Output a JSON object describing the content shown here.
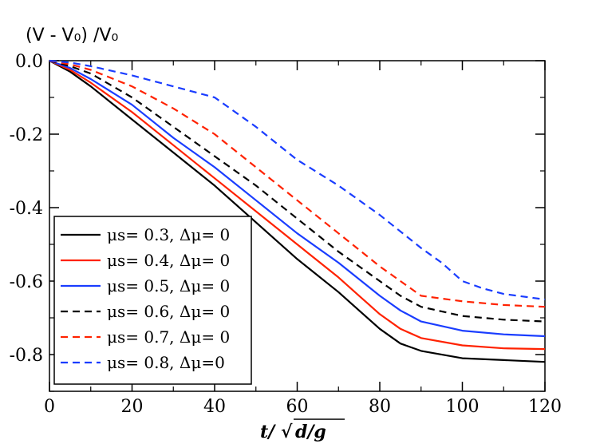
{
  "chart_data": {
    "type": "line",
    "title": "",
    "ylabel": "(V - V₀) /V₀",
    "xlabel": "t/√d/g",
    "xlim": [
      0,
      120
    ],
    "ylim": [
      -0.9,
      0
    ],
    "x_ticks": [
      0,
      20,
      40,
      60,
      80,
      100,
      120
    ],
    "x_tick_labels": [
      "0",
      "20",
      "40",
      "60",
      "80",
      "100",
      "120"
    ],
    "y_ticks": [
      0,
      -0.2,
      -0.4,
      -0.6,
      -0.8
    ],
    "y_tick_labels": [
      "0.0",
      "-0.2",
      "-0.4",
      "-0.6",
      "-0.8"
    ],
    "grid": false,
    "legend_position": "bottom-left",
    "series": [
      {
        "name": "μ_s= 0.3, Δμ= 0",
        "legend_text": "μs= 0.3, Δμ= 0",
        "color": "#000000",
        "dash": "solid",
        "x": [
          0,
          5,
          10,
          20,
          30,
          40,
          50,
          60,
          70,
          75,
          80,
          85,
          90,
          100,
          110,
          120
        ],
        "y": [
          0,
          -0.03,
          -0.07,
          -0.16,
          -0.25,
          -0.34,
          -0.44,
          -0.54,
          -0.63,
          -0.68,
          -0.73,
          -0.77,
          -0.79,
          -0.81,
          -0.815,
          -0.82
        ]
      },
      {
        "name": "μ_s= 0.4, Δμ= 0",
        "legend_text": "μs= 0.4, Δμ= 0",
        "color": "#ff2200",
        "dash": "solid",
        "x": [
          0,
          5,
          10,
          20,
          30,
          40,
          50,
          60,
          70,
          75,
          80,
          85,
          90,
          100,
          110,
          120
        ],
        "y": [
          0,
          -0.025,
          -0.06,
          -0.14,
          -0.23,
          -0.32,
          -0.41,
          -0.5,
          -0.59,
          -0.64,
          -0.69,
          -0.73,
          -0.755,
          -0.775,
          -0.783,
          -0.785
        ]
      },
      {
        "name": "μ_s= 0.5, Δμ= 0",
        "legend_text": "μs= 0.5, Δμ= 0",
        "color": "#1a3dff",
        "dash": "solid",
        "x": [
          0,
          5,
          10,
          20,
          30,
          40,
          50,
          60,
          70,
          80,
          85,
          90,
          100,
          110,
          120
        ],
        "y": [
          0,
          -0.02,
          -0.05,
          -0.12,
          -0.21,
          -0.29,
          -0.38,
          -0.47,
          -0.55,
          -0.64,
          -0.68,
          -0.71,
          -0.735,
          -0.745,
          -0.75
        ]
      },
      {
        "name": "μ_s= 0.6, Δμ= 0",
        "legend_text": "μs= 0.6, Δμ= 0",
        "color": "#000000",
        "dash": "dashed",
        "x": [
          0,
          5,
          10,
          20,
          30,
          40,
          50,
          60,
          70,
          80,
          85,
          90,
          100,
          110,
          120
        ],
        "y": [
          0,
          -0.015,
          -0.035,
          -0.1,
          -0.18,
          -0.26,
          -0.34,
          -0.43,
          -0.52,
          -0.6,
          -0.64,
          -0.67,
          -0.695,
          -0.705,
          -0.71
        ]
      },
      {
        "name": "μ_s= 0.7, Δμ= 0",
        "legend_text": "μs= 0.7, Δμ= 0",
        "color": "#ff2200",
        "dash": "dashed",
        "x": [
          0,
          5,
          10,
          20,
          30,
          40,
          50,
          60,
          70,
          80,
          85,
          90,
          100,
          110,
          120
        ],
        "y": [
          0,
          -0.01,
          -0.025,
          -0.07,
          -0.13,
          -0.2,
          -0.29,
          -0.38,
          -0.47,
          -0.56,
          -0.6,
          -0.64,
          -0.655,
          -0.665,
          -0.67
        ]
      },
      {
        "name": "μ_s= 0.8, Δμ=0",
        "legend_text": "μs= 0.8, Δμ=0",
        "color": "#1a3dff",
        "dash": "dashed",
        "x": [
          0,
          5,
          10,
          20,
          30,
          40,
          50,
          60,
          70,
          80,
          90,
          95,
          100,
          105,
          110,
          120
        ],
        "y": [
          0,
          -0.005,
          -0.015,
          -0.04,
          -0.07,
          -0.1,
          -0.18,
          -0.27,
          -0.34,
          -0.42,
          -0.51,
          -0.55,
          -0.6,
          -0.62,
          -0.635,
          -0.65
        ]
      }
    ]
  }
}
